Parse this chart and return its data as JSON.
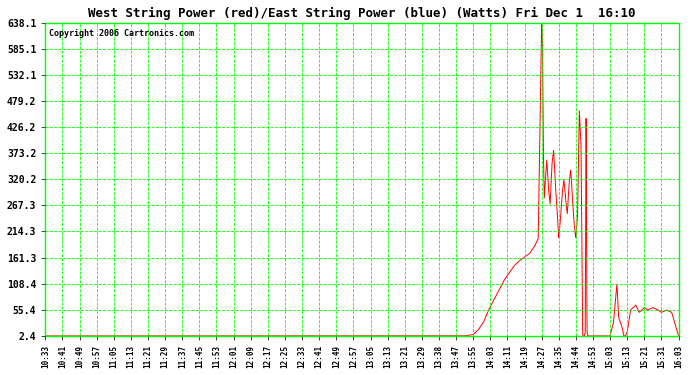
{
  "title": "West String Power (red)/East String Power (blue) (Watts) Fri Dec 1  16:10",
  "copyright": "Copyright 2006 Cartronics.com",
  "background_color": "#ffffff",
  "plot_bg_color": "#ffffff",
  "grid_color": "#00ff00",
  "line_color_red": "#ff0000",
  "yticks": [
    2.4,
    55.4,
    108.4,
    161.3,
    214.3,
    267.3,
    320.2,
    373.2,
    426.2,
    479.2,
    532.1,
    585.1,
    638.1
  ],
  "ymin": 2.4,
  "ymax": 638.1,
  "xtick_labels": [
    "10:33",
    "10:41",
    "10:49",
    "10:57",
    "11:05",
    "11:13",
    "11:21",
    "11:29",
    "11:37",
    "11:45",
    "11:53",
    "12:01",
    "12:09",
    "12:17",
    "12:25",
    "12:33",
    "12:41",
    "12:49",
    "12:57",
    "13:05",
    "13:13",
    "13:21",
    "13:29",
    "13:38",
    "13:47",
    "13:55",
    "14:03",
    "14:11",
    "14:19",
    "14:27",
    "14:35",
    "14:44",
    "14:53",
    "15:03",
    "15:13",
    "15:21",
    "15:31",
    "16:03"
  ],
  "ctrl_x": [
    0,
    24.5,
    25.0,
    25.3,
    25.6,
    25.9,
    26.2,
    26.5,
    26.8,
    27.1,
    27.4,
    27.7,
    28.0,
    28.3,
    28.6,
    28.8,
    29.0,
    29.05,
    29.1,
    29.15,
    29.2,
    29.3,
    29.4,
    29.5,
    29.6,
    29.7,
    29.8,
    29.9,
    30.0,
    30.1,
    30.2,
    30.3,
    30.4,
    30.5,
    30.6,
    30.7,
    30.8,
    30.9,
    31.0,
    31.1,
    31.2,
    31.3,
    31.4,
    31.5,
    31.55,
    31.6,
    31.65,
    31.7,
    31.8,
    31.9,
    32.0,
    32.1,
    32.3,
    32.5,
    32.7,
    33.0,
    33.2,
    33.4,
    33.5,
    33.6,
    33.7,
    33.8,
    33.9,
    34.0,
    34.2,
    34.5,
    34.7,
    35.0,
    35.2,
    35.5,
    35.8,
    36.0,
    36.3,
    36.6,
    37.0
  ],
  "ctrl_y": [
    2.4,
    2.4,
    5,
    15,
    30,
    55,
    75,
    95,
    115,
    130,
    145,
    155,
    162,
    170,
    185,
    200,
    638.1,
    600,
    380,
    280,
    310,
    360,
    300,
    270,
    350,
    380,
    310,
    260,
    200,
    240,
    290,
    320,
    280,
    250,
    310,
    340,
    280,
    230,
    200,
    250,
    460,
    390,
    2.4,
    2.4,
    10,
    479.2,
    10,
    2.4,
    2.4,
    2.4,
    2.4,
    2.4,
    2.4,
    2.4,
    2.4,
    2.4,
    30,
    108.4,
    40,
    30,
    20,
    2.4,
    2.4,
    10,
    55,
    65,
    50,
    60,
    55,
    60,
    55,
    50,
    55,
    50,
    2.4
  ]
}
